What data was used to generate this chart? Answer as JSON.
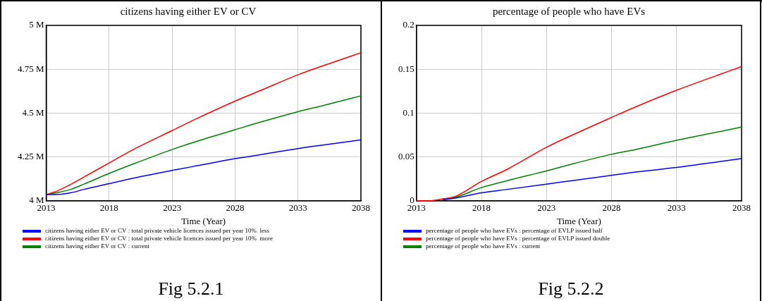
{
  "chart_data": [
    {
      "type": "line",
      "title": "citizens having either EV or CV",
      "xlabel": "Time (Year)",
      "x": [
        2013,
        2014,
        2015,
        2016,
        2018,
        2020,
        2023,
        2025,
        2028,
        2030,
        2033,
        2035,
        2038
      ],
      "series": [
        {
          "name": "citizens having either EV or CV : total private vehicle licences issued per year 10%  less",
          "color": "#0000ff",
          "values": [
            4035000,
            4036000,
            4046000,
            4065000,
            4098000,
            4130000,
            4173000,
            4200000,
            4240000,
            4262000,
            4298000,
            4318000,
            4347000
          ]
        },
        {
          "name": "citizens having either EV or CV : total private vehicle licences issued per year 10%  more",
          "color": "#ff0000",
          "values": [
            4035000,
            4060000,
            4095000,
            4135000,
            4216000,
            4295000,
            4400000,
            4470000,
            4568000,
            4628000,
            4718000,
            4770000,
            4844000
          ]
        },
        {
          "name": "citizens having either EV or CV : current",
          "color": "#008000",
          "values": [
            4035000,
            4048000,
            4066000,
            4095000,
            4156000,
            4212000,
            4292000,
            4340000,
            4405000,
            4448000,
            4508000,
            4543000,
            4598000
          ]
        }
      ],
      "xlim": [
        2013,
        2038
      ],
      "xticks": [
        2013,
        2018,
        2023,
        2028,
        2033,
        2038
      ],
      "ylim": [
        4000000,
        5000000
      ],
      "yticks": [
        {
          "value": 4000000,
          "label": "4 M"
        },
        {
          "value": 4250000,
          "label": "4.25 M"
        },
        {
          "value": 4500000,
          "label": "4.5 M"
        },
        {
          "value": 4750000,
          "label": "4.75 M"
        },
        {
          "value": 5000000,
          "label": "5 M"
        }
      ],
      "grid": true,
      "legend": "bottom",
      "marker": "none",
      "line_style": "solid",
      "annotations": [
        "Fig 5.2.1"
      ]
    },
    {
      "type": "line",
      "title": "percentage of people who have EVs",
      "xlabel": "Time (Year)",
      "x": [
        2013,
        2014,
        2015,
        2016,
        2018,
        2020,
        2023,
        2025,
        2028,
        2030,
        2033,
        2035,
        2038
      ],
      "series": [
        {
          "name": "percentage of people who have EVs : percentage of EVLP issued half",
          "color": "#0000ff",
          "values": [
            null,
            null,
            0.001,
            0.003,
            0.009,
            0.013,
            0.019,
            0.023,
            0.029,
            0.033,
            0.038,
            0.042,
            0.048
          ]
        },
        {
          "name": "percentage of people who have EVs : percentage of EVLP issued double",
          "color": "#ff0000",
          "values": [
            0,
            0,
            0.002,
            0.005,
            0.022,
            0.036,
            0.061,
            0.075,
            0.095,
            0.108,
            0.126,
            0.137,
            0.153
          ]
        },
        {
          "name": "percentage of people who have EVs : current",
          "color": "#008000",
          "values": [
            null,
            null,
            0.002,
            0.004,
            0.015,
            0.023,
            0.034,
            0.042,
            0.053,
            0.059,
            0.069,
            0.075,
            0.084
          ]
        }
      ],
      "xlim": [
        2013,
        2038
      ],
      "xticks": [
        2013,
        2018,
        2023,
        2028,
        2033,
        2038
      ],
      "ylim": [
        0,
        0.2
      ],
      "yticks": [
        0,
        0.05,
        0.1,
        0.15,
        0.2
      ],
      "grid": true,
      "legend": "bottom",
      "marker": "none",
      "line_style": "solid",
      "annotations": [
        "Fig 5.2.2"
      ]
    }
  ]
}
